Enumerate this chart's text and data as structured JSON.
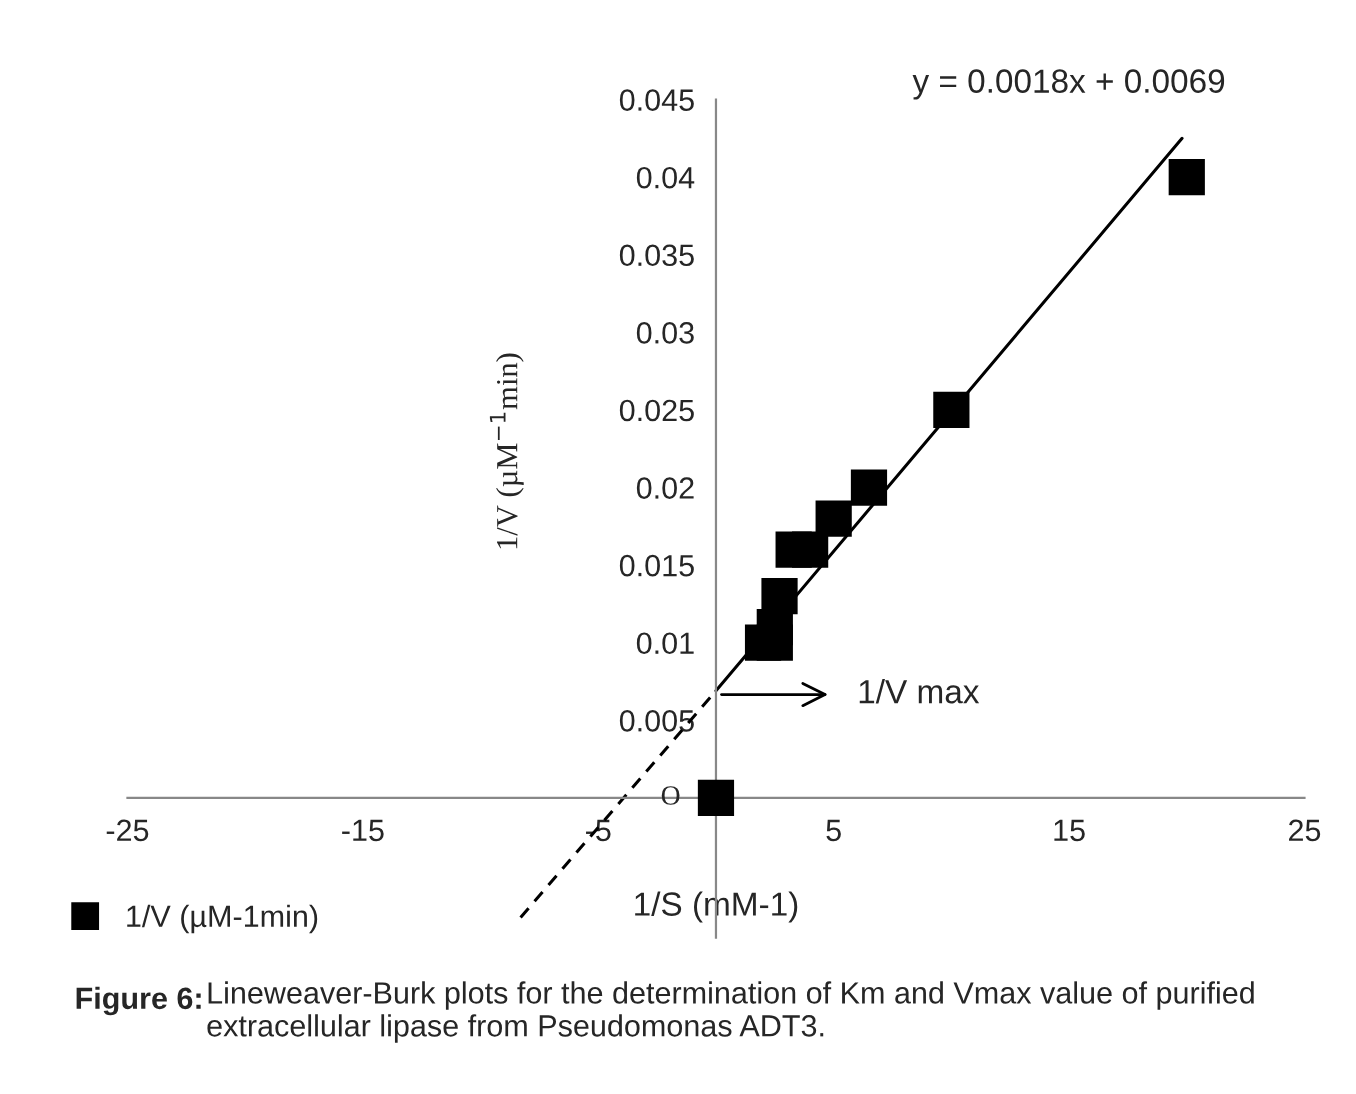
{
  "chart_data": {
    "type": "scatter",
    "xlabel": "1/S (mM-1)",
    "ylabel": "1/V (µM$^{−1}$min)",
    "xlim": [
      -25,
      25
    ],
    "xticks": [
      -25,
      -15,
      -5,
      5,
      15,
      25
    ],
    "ylim": [
      -0.009,
      0.045
    ],
    "yticks": [
      0.005,
      0.01,
      0.015,
      0.02,
      0.025,
      0.03,
      0.035,
      0.04,
      0.045
    ],
    "marker": "square",
    "legend": "bottom left",
    "grid": false,
    "series": [
      {
        "name": "1/V (µM-1min)",
        "color": "#000000",
        "x": [
          0,
          2,
          2.5,
          2.5,
          2.7,
          3.3,
          4,
          5,
          6.5,
          10,
          20
        ],
        "values": [
          0,
          0.01,
          0.01,
          0.011,
          0.013,
          0.016,
          0.016,
          0.018,
          0.02,
          0.025,
          0.04
        ]
      },
      {
        "type": "line",
        "color": "#000000",
        "line_style": "solid",
        "marker": "none",
        "x": [
          0,
          19.8
        ],
        "values": [
          0.0069,
          0.0425
        ]
      },
      {
        "type": "line",
        "color": "#000000",
        "line_style": "dashed",
        "marker": "none",
        "x": [
          -8.3,
          0
        ],
        "values": [
          -0.0077,
          0.0069
        ]
      }
    ],
    "annotations": [
      "y = 0.0018x + 0.0069",
      "1/V max",
      {
        "text": "O",
        "x": 0,
        "y": 0
      },
      "Figure 6:",
      "Lineweaver-Burk plots for the determination of Km and Vmax value of purified extracellular lipase from Pseudomonas ADT3."
    ]
  }
}
